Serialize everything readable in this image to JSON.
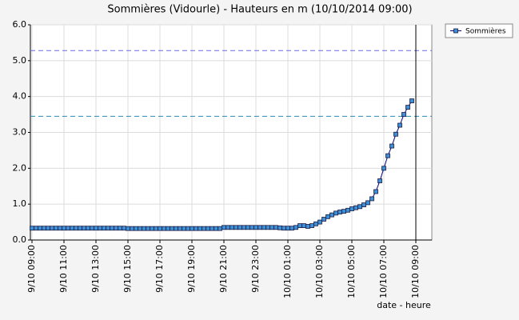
{
  "chart_data": {
    "type": "line",
    "title": "Sommières (Vidourle) - Hauteurs en m (10/10/2014 09:00)",
    "x_label": "date - heure",
    "legend": "top-right-outside",
    "grid": true,
    "xlim": [
      "9/10 08:54",
      "10/10 10:00"
    ],
    "ylim": [
      0,
      6
    ],
    "yticks": [
      {
        "value": 0,
        "label": "0.0"
      },
      {
        "value": 1,
        "label": "1.0"
      },
      {
        "value": 2,
        "label": "2.0"
      },
      {
        "value": 3,
        "label": "3.0"
      },
      {
        "value": 4,
        "label": "4.0"
      },
      {
        "value": 5,
        "label": "5.0"
      },
      {
        "value": 6,
        "label": "6.0"
      }
    ],
    "xticks": [
      "9/10 09:00",
      "9/10 11:00",
      "9/10 13:00",
      "9/10 15:00",
      "9/10 17:00",
      "9/10 19:00",
      "9/10 21:00",
      "9/10 23:00",
      "10/10 01:00",
      "10/10 03:00",
      "10/10 05:00",
      "10/10 07:00",
      "10/10 09:00"
    ],
    "reference_lines": [
      {
        "value": 5.28,
        "color": "#6a6ae0"
      },
      {
        "value": 3.45,
        "color": "#2a8cb0"
      }
    ],
    "vline": "10/10 09:00",
    "x": [
      "9/10 09:00",
      "9/10 09:15",
      "9/10 09:30",
      "9/10 09:45",
      "9/10 10:00",
      "9/10 10:15",
      "9/10 10:30",
      "9/10 10:45",
      "9/10 11:00",
      "9/10 11:15",
      "9/10 11:30",
      "9/10 11:45",
      "9/10 12:00",
      "9/10 12:15",
      "9/10 12:30",
      "9/10 12:45",
      "9/10 13:00",
      "9/10 13:15",
      "9/10 13:30",
      "9/10 13:45",
      "9/10 14:00",
      "9/10 14:15",
      "9/10 14:30",
      "9/10 14:45",
      "9/10 15:00",
      "9/10 15:15",
      "9/10 15:30",
      "9/10 15:45",
      "9/10 16:00",
      "9/10 16:15",
      "9/10 16:30",
      "9/10 16:45",
      "9/10 17:00",
      "9/10 17:15",
      "9/10 17:30",
      "9/10 17:45",
      "9/10 18:00",
      "9/10 18:15",
      "9/10 18:30",
      "9/10 18:45",
      "9/10 19:00",
      "9/10 19:15",
      "9/10 19:30",
      "9/10 19:45",
      "9/10 20:00",
      "9/10 20:15",
      "9/10 20:30",
      "9/10 20:45",
      "9/10 21:00",
      "9/10 21:15",
      "9/10 21:30",
      "9/10 21:45",
      "9/10 22:00",
      "9/10 22:15",
      "9/10 22:30",
      "9/10 22:45",
      "9/10 23:00",
      "9/10 23:15",
      "9/10 23:30",
      "9/10 23:45",
      "10/10 00:00",
      "10/10 00:15",
      "10/10 00:30",
      "10/10 00:45",
      "10/10 01:00",
      "10/10 01:15",
      "10/10 01:30",
      "10/10 01:45",
      "10/10 02:00",
      "10/10 02:15",
      "10/10 02:30",
      "10/10 02:45",
      "10/10 03:00",
      "10/10 03:15",
      "10/10 03:30",
      "10/10 03:45",
      "10/10 04:00",
      "10/10 04:15",
      "10/10 04:30",
      "10/10 04:45",
      "10/10 05:00",
      "10/10 05:15",
      "10/10 05:30",
      "10/10 05:45",
      "10/10 06:00",
      "10/10 06:15",
      "10/10 06:30",
      "10/10 06:45",
      "10/10 07:00",
      "10/10 07:15",
      "10/10 07:30",
      "10/10 07:45",
      "10/10 08:00",
      "10/10 08:15",
      "10/10 08:30",
      "10/10 08:45"
    ],
    "series": [
      {
        "name": "Sommières",
        "color": "#000080",
        "marker_color": "#3d8fd6",
        "values": [
          0.33,
          0.33,
          0.33,
          0.33,
          0.33,
          0.33,
          0.33,
          0.33,
          0.33,
          0.33,
          0.33,
          0.33,
          0.33,
          0.33,
          0.33,
          0.33,
          0.33,
          0.33,
          0.33,
          0.33,
          0.33,
          0.33,
          0.33,
          0.33,
          0.32,
          0.32,
          0.32,
          0.32,
          0.32,
          0.32,
          0.32,
          0.32,
          0.32,
          0.32,
          0.32,
          0.32,
          0.32,
          0.32,
          0.32,
          0.32,
          0.32,
          0.32,
          0.32,
          0.32,
          0.32,
          0.32,
          0.32,
          0.32,
          0.35,
          0.35,
          0.35,
          0.35,
          0.35,
          0.35,
          0.35,
          0.35,
          0.35,
          0.35,
          0.35,
          0.35,
          0.35,
          0.35,
          0.34,
          0.33,
          0.33,
          0.33,
          0.35,
          0.4,
          0.4,
          0.38,
          0.4,
          0.45,
          0.5,
          0.58,
          0.65,
          0.7,
          0.75,
          0.78,
          0.8,
          0.83,
          0.87,
          0.9,
          0.93,
          0.98,
          1.04,
          1.15,
          1.35,
          1.65,
          2.0,
          2.35,
          2.62,
          2.95,
          3.2,
          3.5,
          3.7,
          3.88
        ]
      }
    ]
  }
}
